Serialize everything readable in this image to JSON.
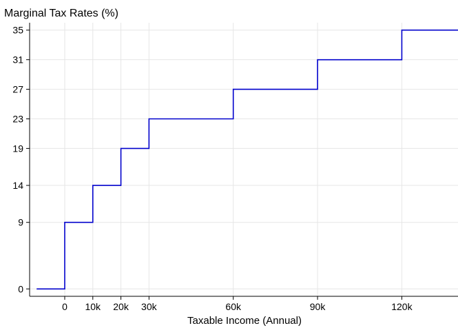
{
  "chart_data": {
    "type": "line",
    "step": true,
    "title": "",
    "ylabel": "Marginal Tax Rates (%)",
    "xlabel": "Taxable Income (Annual)",
    "x_ticks": [
      {
        "value": 0,
        "label": "0"
      },
      {
        "value": 10000,
        "label": "10k"
      },
      {
        "value": 20000,
        "label": "20k"
      },
      {
        "value": 30000,
        "label": "30k"
      },
      {
        "value": 60000,
        "label": "60k"
      },
      {
        "value": 90000,
        "label": "90k"
      },
      {
        "value": 120000,
        "label": "120k"
      }
    ],
    "y_ticks": [
      0,
      9,
      14,
      19,
      23,
      27,
      31,
      35
    ],
    "xlim": [
      -12500,
      140000
    ],
    "ylim": [
      -1,
      36
    ],
    "grid": true,
    "series": [
      {
        "color": "#0000cc",
        "points": [
          [
            -10000,
            0
          ],
          [
            0,
            0
          ],
          [
            0,
            9
          ],
          [
            10000,
            9
          ],
          [
            10000,
            14
          ],
          [
            20000,
            14
          ],
          [
            20000,
            19
          ],
          [
            30000,
            19
          ],
          [
            30000,
            23
          ],
          [
            60000,
            23
          ],
          [
            60000,
            27
          ],
          [
            90000,
            27
          ],
          [
            90000,
            31
          ],
          [
            120000,
            31
          ],
          [
            120000,
            35
          ],
          [
            140000,
            35
          ]
        ]
      }
    ]
  }
}
